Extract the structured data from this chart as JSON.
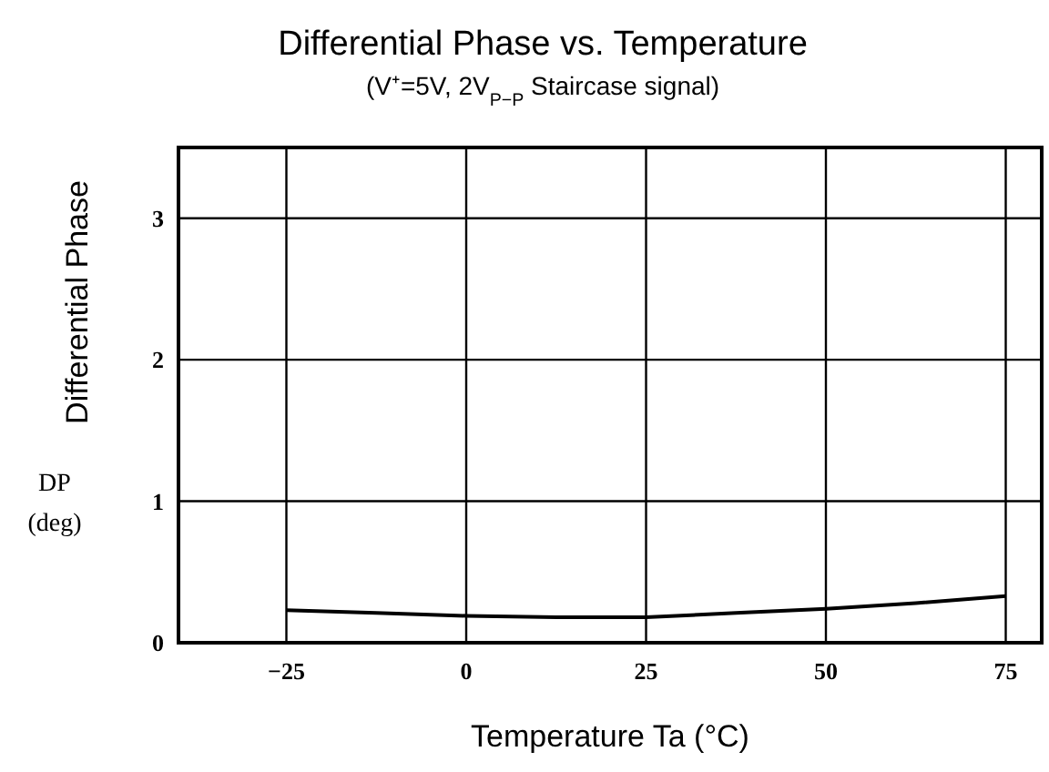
{
  "chart_data": {
    "type": "line",
    "title": "Differential Phase vs. Temperature",
    "subtitle": "(V⁺=5V, 2V$_{P−P}$ Staircase signal)",
    "xlabel": "Temperature  Ta (°C)",
    "ylabel": "Differential Phase",
    "annotations": [
      "DP (deg)"
    ],
    "x": [
      -25,
      -12.5,
      0,
      12.5,
      25,
      37.5,
      50,
      62.5,
      75
    ],
    "series": [
      {
        "color": "#000000",
        "values": [
          0.23,
          0.21,
          0.19,
          0.18,
          0.18,
          0.21,
          0.24,
          0.28,
          0.33
        ]
      }
    ],
    "xlim": [
      -40,
      80
    ],
    "xticks": [
      -25,
      0,
      25,
      50,
      75
    ],
    "ylim": [
      0,
      3.5
    ],
    "yticks": [
      0,
      1,
      2,
      3
    ],
    "grid": true,
    "marker": "none",
    "line_style": "solid"
  }
}
